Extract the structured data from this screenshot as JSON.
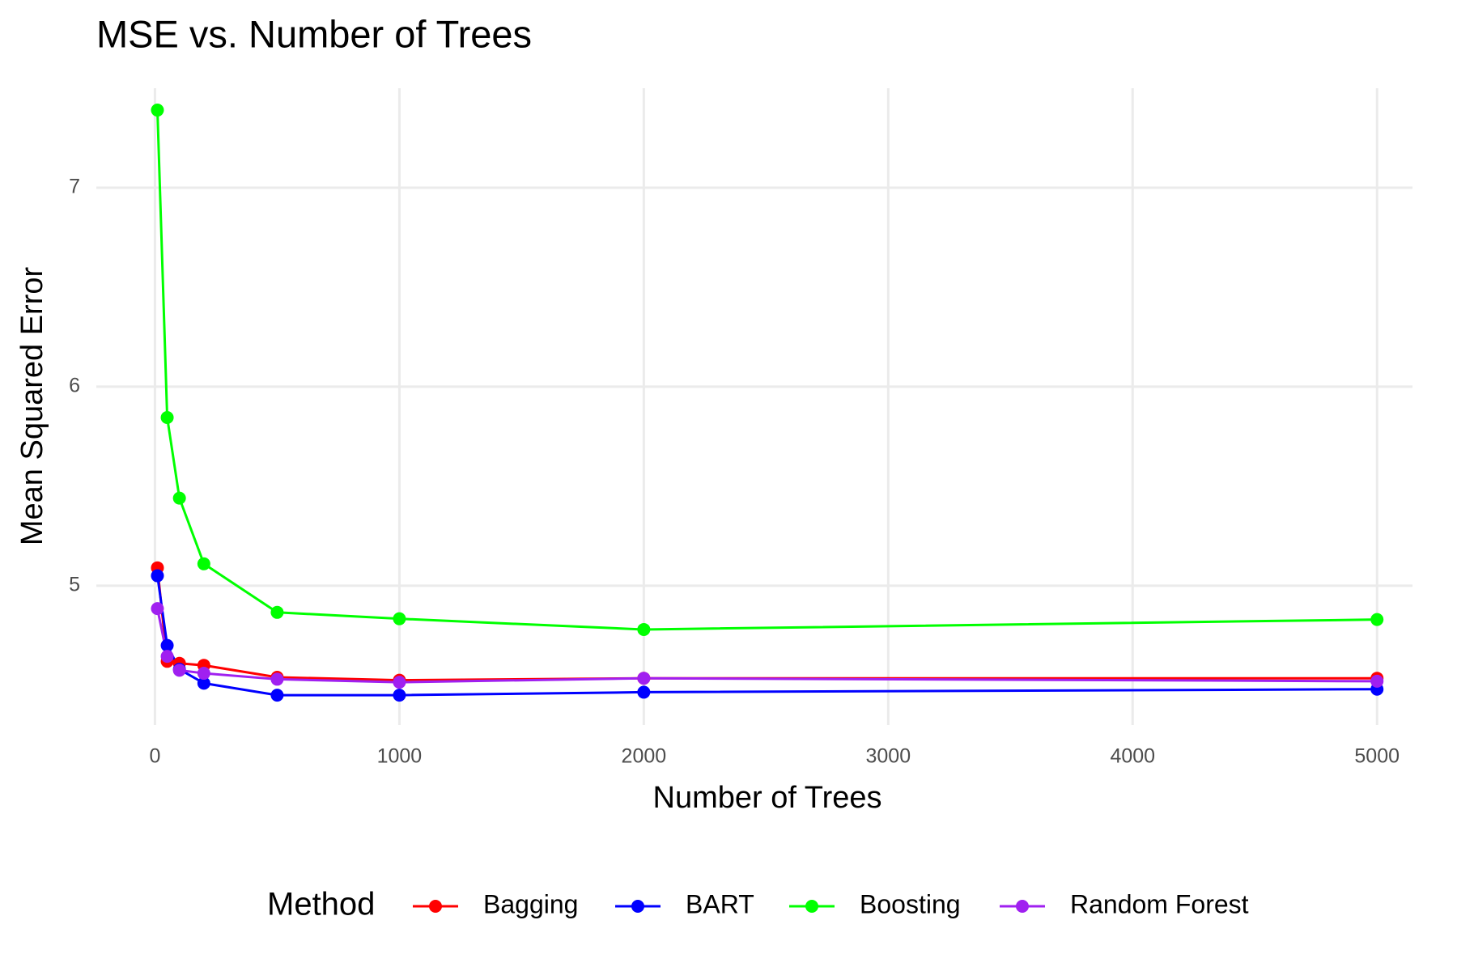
{
  "chart_data": {
    "type": "line",
    "title": "MSE vs. Number of Trees",
    "x_label": "Number of Trees",
    "y_label": "Mean Squared Error",
    "legend_title": "Method",
    "legend_position": "bottom",
    "grid": true,
    "x": [
      10,
      50,
      100,
      200,
      500,
      1000,
      2000,
      5000
    ],
    "series": [
      {
        "name": "Bagging",
        "color": "#ff0000",
        "values": [
          5.09,
          4.62,
          4.61,
          4.6,
          4.54,
          4.525,
          4.535,
          4.535
        ]
      },
      {
        "name": "BART",
        "color": "#0000ff",
        "values": [
          5.05,
          4.7,
          4.58,
          4.51,
          4.45,
          4.45,
          4.465,
          4.48
        ]
      },
      {
        "name": "Boosting",
        "color": "#00ff00",
        "values": [
          7.39,
          5.845,
          5.44,
          5.11,
          4.866,
          4.834,
          4.78,
          4.83
        ]
      },
      {
        "name": "Random Forest",
        "color": "#a020f0",
        "values": [
          4.885,
          4.645,
          4.575,
          4.56,
          4.53,
          4.515,
          4.535,
          4.52
        ]
      }
    ],
    "xlim": [
      -240,
      5145
    ],
    "xticks": [
      0,
      1000,
      2000,
      3000,
      4000,
      5000
    ],
    "ylim": [
      4.3,
      7.5
    ],
    "yticks": [
      5,
      6,
      7
    ]
  }
}
